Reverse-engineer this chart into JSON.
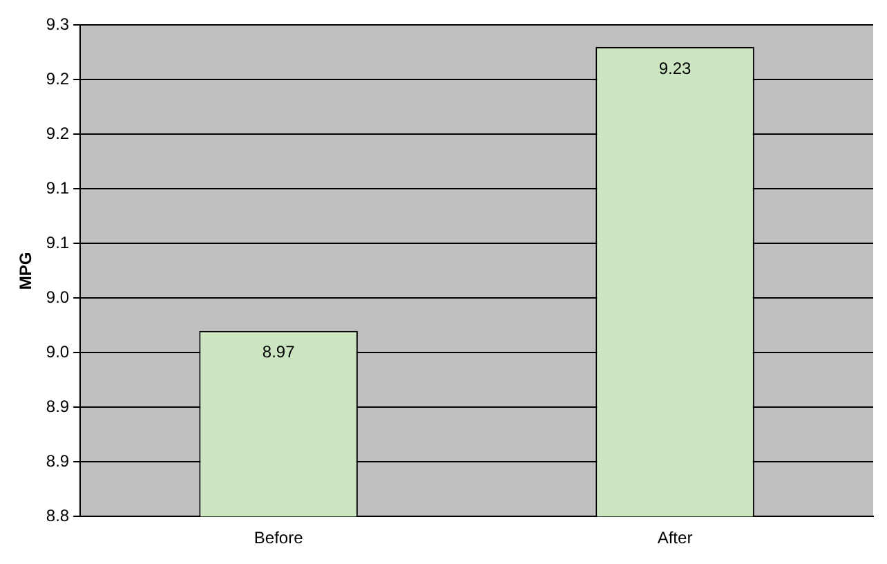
{
  "chart_data": {
    "type": "bar",
    "ylabel": "MPG",
    "categories": [
      "Before",
      "After"
    ],
    "values": [
      8.97,
      9.23
    ],
    "color": "#cce6c2",
    "ylim": [
      8.8,
      9.25
    ],
    "yticks": [
      {
        "value": 8.8,
        "label": "8.8"
      },
      {
        "value": 8.85,
        "label": "8.9"
      },
      {
        "value": 8.9,
        "label": "8.9"
      },
      {
        "value": 8.95,
        "label": "9.0"
      },
      {
        "value": 9.0,
        "label": "9.0"
      },
      {
        "value": 9.05,
        "label": "9.1"
      },
      {
        "value": 9.1,
        "label": "9.1"
      },
      {
        "value": 9.15,
        "label": "9.2"
      },
      {
        "value": 9.2,
        "label": "9.2"
      },
      {
        "value": 9.25,
        "label": "9.3"
      }
    ],
    "grid": "y",
    "legend": false,
    "data_labels": true
  }
}
